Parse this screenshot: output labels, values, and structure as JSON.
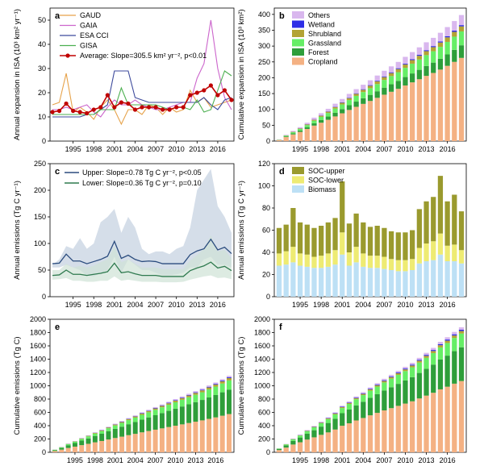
{
  "figure": {
    "years_axis": [
      "1995",
      "1998",
      "2001",
      "2004",
      "2007",
      "2010",
      "2013",
      "2016"
    ]
  },
  "chart_data": [
    {
      "id": "a",
      "type": "line",
      "panel_label": "a",
      "ylabel": "Annual expansion in ISA (10³ km² yr⁻¹)",
      "ylim": [
        0,
        55
      ],
      "yticks": [
        0,
        10,
        20,
        30,
        40,
        50
      ],
      "x": [
        1992,
        1993,
        1994,
        1995,
        1996,
        1997,
        1998,
        1999,
        2000,
        2001,
        2002,
        2003,
        2004,
        2005,
        2006,
        2007,
        2008,
        2009,
        2010,
        2011,
        2012,
        2013,
        2014,
        2015,
        2016,
        2017,
        2018
      ],
      "series": [
        {
          "name": "GAUD",
          "color": "#e6a24a",
          "values": [
            15,
            16,
            28,
            12,
            14,
            12,
            9,
            14,
            17,
            13,
            7,
            13,
            13,
            11,
            15,
            14,
            11,
            14,
            12,
            13,
            21,
            16,
            18,
            14,
            15,
            16,
            17
          ]
        },
        {
          "name": "GAIA",
          "color": "#cc66cc",
          "values": [
            13,
            13,
            14,
            13,
            14,
            15,
            12,
            10,
            14,
            17,
            15,
            15,
            17,
            15,
            14,
            13,
            13,
            14,
            15,
            16,
            16,
            26,
            32,
            50,
            30,
            18,
            13
          ]
        },
        {
          "name": "ESA CCI",
          "color": "#3d4a9c",
          "values": [
            10,
            10,
            10,
            10,
            10,
            11,
            11,
            13,
            15,
            29,
            29,
            29,
            18,
            17,
            16,
            16,
            16,
            16,
            16,
            16,
            16,
            16,
            18,
            15,
            13,
            17,
            18
          ]
        },
        {
          "name": "GISA",
          "color": "#4caf50",
          "values": [
            11,
            11,
            11,
            11,
            11,
            11,
            11,
            13,
            13,
            13,
            22,
            15,
            15,
            15,
            15,
            15,
            14,
            13,
            14,
            14,
            13,
            17,
            12,
            13,
            21,
            29,
            27
          ]
        },
        {
          "name": "Average: Slope=305.5 km² yr⁻², p<0.01",
          "color": "#c00000",
          "marker": true,
          "values": [
            12,
            12.5,
            15.5,
            12.5,
            12,
            11.5,
            13,
            14,
            19,
            14,
            16,
            15.5,
            13,
            14,
            14,
            14,
            13,
            13,
            14,
            14,
            19,
            20,
            21,
            23,
            19,
            21,
            17
          ]
        }
      ]
    },
    {
      "id": "b",
      "type": "bar",
      "stacked": true,
      "panel_label": "b",
      "ylabel": "Cumulative expansion in ISA (10³ km²)",
      "ylim": [
        0,
        420
      ],
      "yticks": [
        0,
        50,
        100,
        150,
        200,
        250,
        300,
        350,
        400
      ],
      "years": [
        1992,
        1993,
        1994,
        1995,
        1996,
        1997,
        1998,
        1999,
        2000,
        2001,
        2002,
        2003,
        2004,
        2005,
        2006,
        2007,
        2008,
        2009,
        2010,
        2011,
        2012,
        2013,
        2014,
        2015,
        2016,
        2017,
        2018
      ],
      "totals": [
        5,
        20,
        32,
        44,
        58,
        74,
        88,
        102,
        118,
        133,
        149,
        164,
        178,
        192,
        207,
        222,
        236,
        250,
        266,
        281,
        296,
        312,
        326,
        342,
        360,
        379,
        398
      ],
      "shares": [
        0.66,
        0.1,
        0.11,
        0.04,
        0.01,
        0.08
      ],
      "series": [
        {
          "name": "Cropland",
          "color": "#f4b183"
        },
        {
          "name": "Forest",
          "color": "#2e9e3a"
        },
        {
          "name": "Grassland",
          "color": "#66ee66"
        },
        {
          "name": "Shrubland",
          "color": "#b3a334"
        },
        {
          "name": "Wetland",
          "color": "#2e2ee6"
        },
        {
          "name": "Others",
          "color": "#d9b7ee"
        }
      ]
    },
    {
      "id": "c",
      "type": "area",
      "panel_label": "c",
      "ylabel": "Annual emissions (Tg C yr⁻¹)",
      "ylim": [
        0,
        250
      ],
      "yticks": [
        0,
        50,
        100,
        150,
        200,
        250
      ],
      "x": [
        1992,
        1993,
        1994,
        1995,
        1996,
        1997,
        1998,
        1999,
        2000,
        2001,
        2002,
        2003,
        2004,
        2005,
        2006,
        2007,
        2008,
        2009,
        2010,
        2011,
        2012,
        2013,
        2014,
        2015,
        2016,
        2017,
        2018
      ],
      "series": [
        {
          "name": "Upper: Slope=0.78 Tg C yr⁻², p<0.05",
          "color": "#2b4c7e",
          "band_color": "#c3d0e0",
          "values": [
            62,
            63,
            80,
            67,
            67,
            62,
            66,
            70,
            76,
            104,
            72,
            78,
            70,
            66,
            67,
            66,
            62,
            62,
            62,
            62,
            79,
            86,
            90,
            108,
            88,
            93,
            81
          ],
          "band_low": [
            55,
            55,
            60,
            55,
            50,
            40,
            38,
            45,
            50,
            75,
            45,
            70,
            60,
            50,
            50,
            45,
            40,
            40,
            42,
            45,
            55,
            55,
            70,
            75,
            60,
            60,
            55
          ],
          "band_high": [
            60,
            70,
            95,
            90,
            110,
            90,
            100,
            140,
            150,
            165,
            120,
            150,
            130,
            90,
            80,
            85,
            85,
            80,
            90,
            95,
            130,
            200,
            220,
            240,
            170,
            150,
            120
          ]
        },
        {
          "name": "Lower: Slope=0.36 Tg C yr⁻², p=0.10",
          "color": "#2f7a4f",
          "band_color": "#cfe3d5",
          "values": [
            40,
            41,
            50,
            42,
            42,
            40,
            42,
            44,
            47,
            63,
            45,
            47,
            43,
            40,
            40,
            40,
            38,
            38,
            38,
            38,
            49,
            54,
            58,
            65,
            54,
            57,
            49
          ],
          "band_low": [
            32,
            33,
            35,
            30,
            30,
            28,
            28,
            30,
            30,
            38,
            30,
            32,
            30,
            28,
            28,
            28,
            27,
            27,
            27,
            28,
            32,
            35,
            38,
            40,
            35,
            36,
            33
          ],
          "band_high": [
            50,
            50,
            62,
            55,
            58,
            55,
            58,
            65,
            70,
            95,
            65,
            70,
            62,
            55,
            55,
            55,
            52,
            52,
            52,
            52,
            68,
            78,
            90,
            115,
            85,
            88,
            72
          ]
        }
      ]
    },
    {
      "id": "d",
      "type": "bar",
      "stacked": true,
      "panel_label": "d",
      "ylabel": "Annual emissions (Tg C yr⁻¹)",
      "ylim": [
        0,
        120
      ],
      "yticks": [
        0,
        20,
        40,
        60,
        80,
        100,
        120
      ],
      "years": [
        1992,
        1993,
        1994,
        1995,
        1996,
        1997,
        1998,
        1999,
        2000,
        2001,
        2002,
        2003,
        2004,
        2005,
        2006,
        2007,
        2008,
        2009,
        2010,
        2011,
        2012,
        2013,
        2014,
        2015,
        2016,
        2017,
        2018
      ],
      "series": [
        {
          "name": "Biomass",
          "color": "#bde0f5",
          "values": [
            28,
            29,
            31,
            28,
            27,
            26,
            26,
            27,
            29,
            38,
            28,
            31,
            27,
            26,
            26,
            25,
            24,
            23,
            23,
            24,
            30,
            32,
            33,
            38,
            32,
            32,
            30
          ]
        },
        {
          "name": "SOC-lower",
          "color": "#eeeb73",
          "values": [
            11,
            12,
            14,
            11,
            11,
            10,
            11,
            12,
            13,
            20,
            12,
            14,
            12,
            11,
            11,
            11,
            10,
            10,
            10,
            10,
            14,
            16,
            17,
            19,
            14,
            15,
            12
          ]
        },
        {
          "name": "SOC-upper",
          "color": "#9a9a2e",
          "values": [
            23,
            24,
            35,
            28,
            27,
            26,
            27,
            28,
            29,
            46,
            26,
            30,
            28,
            26,
            27,
            26,
            25,
            25,
            25,
            26,
            35,
            38,
            40,
            52,
            40,
            45,
            35
          ]
        }
      ]
    },
    {
      "id": "e",
      "type": "bar",
      "stacked": true,
      "panel_label": "e",
      "ylabel": "Cumulative emissions (Tg C)",
      "ylim": [
        0,
        2000
      ],
      "yticks": [
        0,
        200,
        400,
        600,
        800,
        1000,
        1200,
        1400,
        1600,
        1800,
        2000
      ],
      "years": [
        1992,
        1993,
        1994,
        1995,
        1996,
        1997,
        1998,
        1999,
        2000,
        2001,
        2002,
        2003,
        2004,
        2005,
        2006,
        2007,
        2008,
        2009,
        2010,
        2011,
        2012,
        2013,
        2014,
        2015,
        2016,
        2017,
        2018
      ],
      "totals": [
        40,
        80,
        130,
        170,
        215,
        255,
        300,
        340,
        385,
        430,
        470,
        515,
        555,
        600,
        640,
        680,
        720,
        760,
        800,
        840,
        880,
        920,
        960,
        1005,
        1050,
        1100,
        1150
      ],
      "shares": [
        0.5,
        0.32,
        0.12,
        0.03,
        0.01,
        0.02
      ],
      "series_ref": "b"
    },
    {
      "id": "f",
      "type": "bar",
      "stacked": true,
      "panel_label": "f",
      "ylabel": "Cumulative emissions (Tg C)",
      "ylim": [
        0,
        2000
      ],
      "yticks": [
        0,
        200,
        400,
        600,
        800,
        1000,
        1200,
        1400,
        1600,
        1800,
        2000
      ],
      "years": [
        1992,
        1993,
        1994,
        1995,
        1996,
        1997,
        1998,
        1999,
        2000,
        2001,
        2002,
        2003,
        2004,
        2005,
        2006,
        2007,
        2008,
        2009,
        2010,
        2011,
        2012,
        2013,
        2014,
        2015,
        2016,
        2017,
        2018
      ],
      "totals": [
        60,
        125,
        205,
        265,
        335,
        395,
        460,
        525,
        600,
        700,
        765,
        840,
        905,
        975,
        1040,
        1105,
        1165,
        1225,
        1285,
        1345,
        1420,
        1495,
        1570,
        1660,
        1730,
        1810,
        1880
      ],
      "shares": [
        0.57,
        0.27,
        0.11,
        0.02,
        0.01,
        0.02
      ],
      "series_ref": "b"
    }
  ]
}
